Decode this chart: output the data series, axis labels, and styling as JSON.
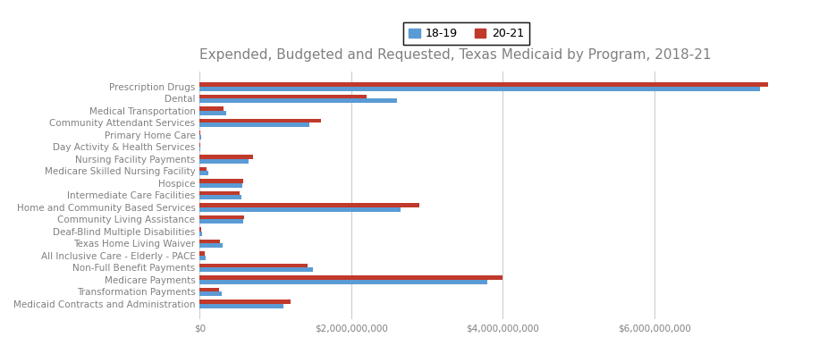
{
  "title": "Expended, Budgeted and Requested, Texas Medicaid by Program, 2018-21",
  "categories": [
    "Prescription Drugs",
    "Dental",
    "Medical Transportation",
    "Community Attendant Services",
    "Primary Home Care",
    "Day Activity & Health Services",
    "Nursing Facility Payments",
    "Medicare Skilled Nursing Facility",
    "Hospice",
    "Intermediate Care Facilities",
    "Home and Community Based Services",
    "Community Living Assistance",
    "Deaf-Blind Multiple Disabilities",
    "Texas Home Living Waiver",
    "All Inclusive Care - Elderly - PACE",
    "Non-Full Benefit Payments",
    "Medicare Payments",
    "Transformation Payments",
    "Medicaid Contracts and Administration"
  ],
  "values_1819": [
    7400000000,
    2600000000,
    350000000,
    1450000000,
    15000000,
    10000000,
    650000000,
    110000000,
    560000000,
    550000000,
    2650000000,
    570000000,
    30000000,
    300000000,
    80000000,
    1500000000,
    3800000000,
    290000000,
    1100000000
  ],
  "values_2021": [
    7500000000,
    2200000000,
    320000000,
    1600000000,
    12000000,
    8000000,
    700000000,
    90000000,
    580000000,
    530000000,
    2900000000,
    590000000,
    25000000,
    270000000,
    70000000,
    1420000000,
    4000000000,
    260000000,
    1200000000
  ],
  "color_1819": "#5b9bd5",
  "color_2021": "#c0392b",
  "legend_label_1819": "18-19",
  "legend_label_2021": "20-21",
  "xlim": [
    0,
    8000000000
  ],
  "xticks": [
    0,
    2000000000,
    4000000000,
    6000000000
  ],
  "xticklabels": [
    "$0",
    "$2,000,000,000",
    "$4,000,000,000",
    "$6,000,000,000"
  ],
  "background_color": "#ffffff",
  "grid_color": "#cccccc",
  "title_fontsize": 11,
  "label_fontsize": 7.5,
  "tick_fontsize": 7.5
}
